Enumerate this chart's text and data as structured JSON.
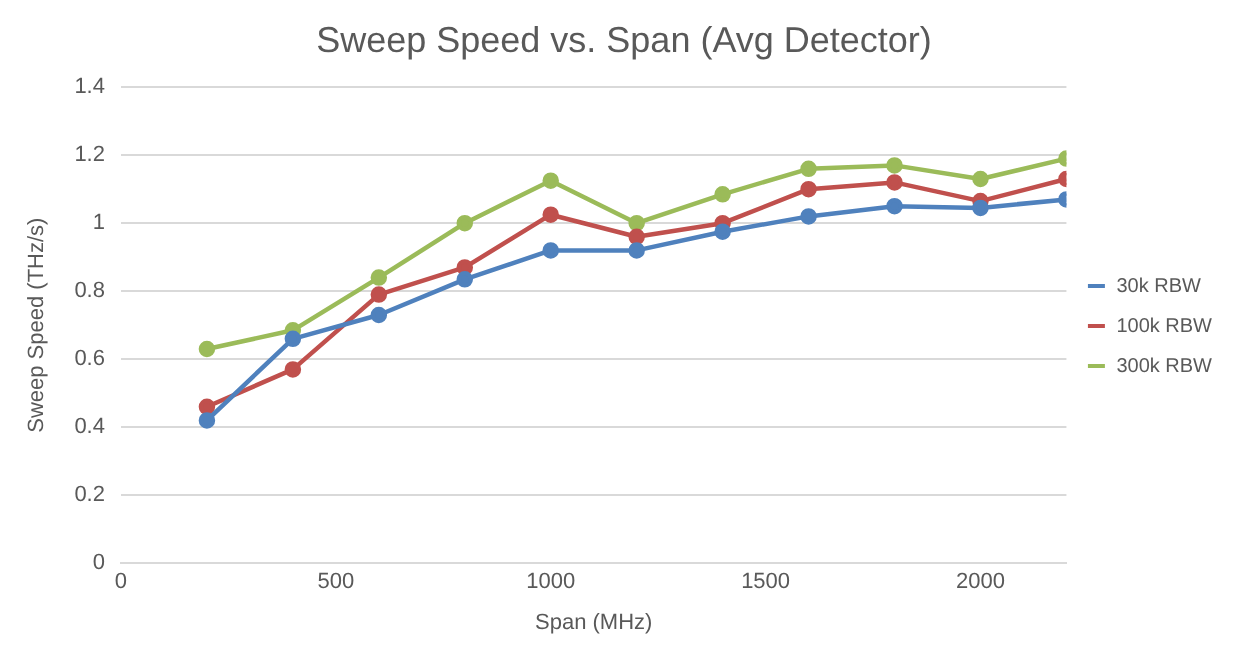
{
  "chart_data": {
    "type": "line",
    "title": "Sweep Speed vs. Span (Avg Detector)",
    "xlabel": "Span (MHz)",
    "ylabel": "Sweep Speed (THz/s)",
    "x": [
      200,
      400,
      600,
      800,
      1000,
      1200,
      1400,
      1600,
      1800,
      2000,
      2200
    ],
    "series": [
      {
        "name": "30k RBW",
        "color": "#4f81bd",
        "values": [
          0.42,
          0.66,
          0.73,
          0.835,
          0.92,
          0.92,
          0.975,
          1.02,
          1.05,
          1.045,
          1.07
        ]
      },
      {
        "name": "100k RBW",
        "color": "#c0504d",
        "values": [
          0.46,
          0.57,
          0.79,
          0.87,
          1.025,
          0.96,
          1.0,
          1.1,
          1.12,
          1.065,
          1.13
        ]
      },
      {
        "name": "300k RBW",
        "color": "#9bbb59",
        "values": [
          0.63,
          0.685,
          0.84,
          1.0,
          1.125,
          1.0,
          1.085,
          1.16,
          1.17,
          1.13,
          1.19
        ]
      }
    ],
    "xlim": [
      0,
      2200
    ],
    "xticks": [
      0,
      500,
      1000,
      1500,
      2000
    ],
    "ylim": [
      0,
      1.4
    ],
    "yticks": [
      0,
      0.2,
      0.4,
      0.6,
      0.8,
      1,
      1.2,
      1.4
    ],
    "grid": "y",
    "legend": "right",
    "marker": "circle",
    "line_style": "solid"
  }
}
